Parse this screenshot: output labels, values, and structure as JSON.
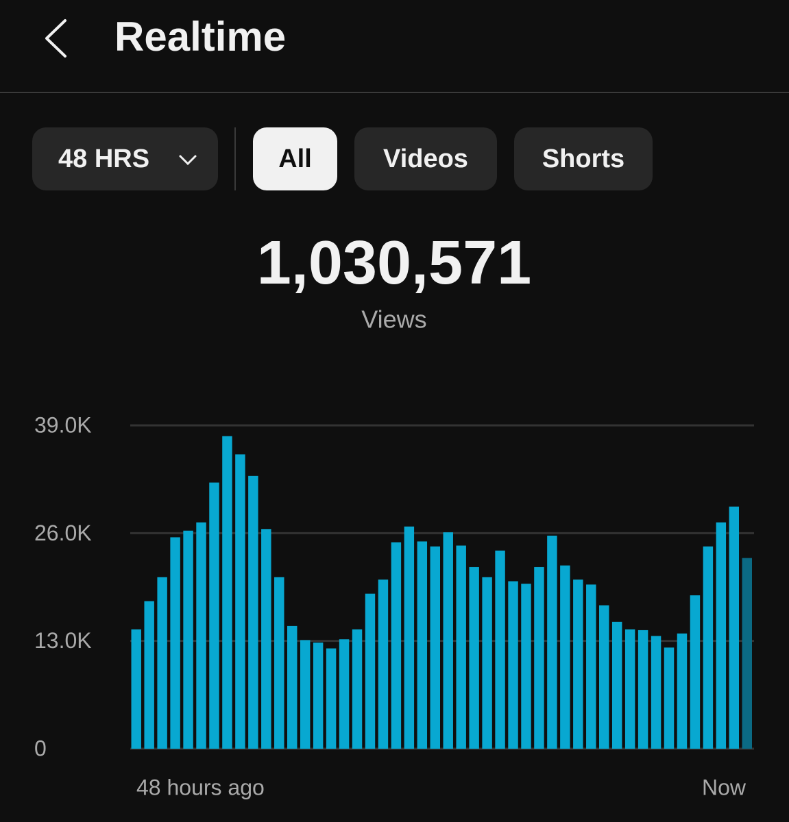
{
  "header": {
    "title": "Realtime"
  },
  "filters": [
    {
      "label": "48 HRS",
      "selected": false
    },
    {
      "label": "All",
      "selected": true
    },
    {
      "label": "Videos",
      "selected": false
    },
    {
      "label": "Shorts",
      "selected": false
    }
  ],
  "summary": {
    "value": "1,030,571",
    "label": "Views"
  },
  "chart_data": {
    "type": "bar",
    "values": [
      14400,
      17800,
      20700,
      25500,
      26300,
      27300,
      32100,
      37700,
      35500,
      32900,
      26500,
      20700,
      14800,
      13100,
      12800,
      12100,
      13200,
      14400,
      18700,
      20400,
      24900,
      26800,
      25000,
      24400,
      26100,
      24500,
      21900,
      20700,
      23900,
      20200,
      19900,
      21900,
      25700,
      22100,
      20400,
      19800,
      17300,
      15300,
      14400,
      14300,
      13600,
      12200,
      13900,
      18500,
      24400,
      27300,
      29200,
      23000
    ],
    "color": "#08a8d1",
    "partial_color": "#0b6a84",
    "ylim": [
      0,
      39000
    ],
    "yticks": [
      0,
      {
        "value": 13000,
        "label": "13.0K"
      },
      {
        "value": 26000,
        "label": "26.0K"
      },
      {
        "value": 39000,
        "label": "39.0K"
      }
    ],
    "grid": true,
    "x_labels": [
      "48 hours ago",
      "Now"
    ]
  }
}
